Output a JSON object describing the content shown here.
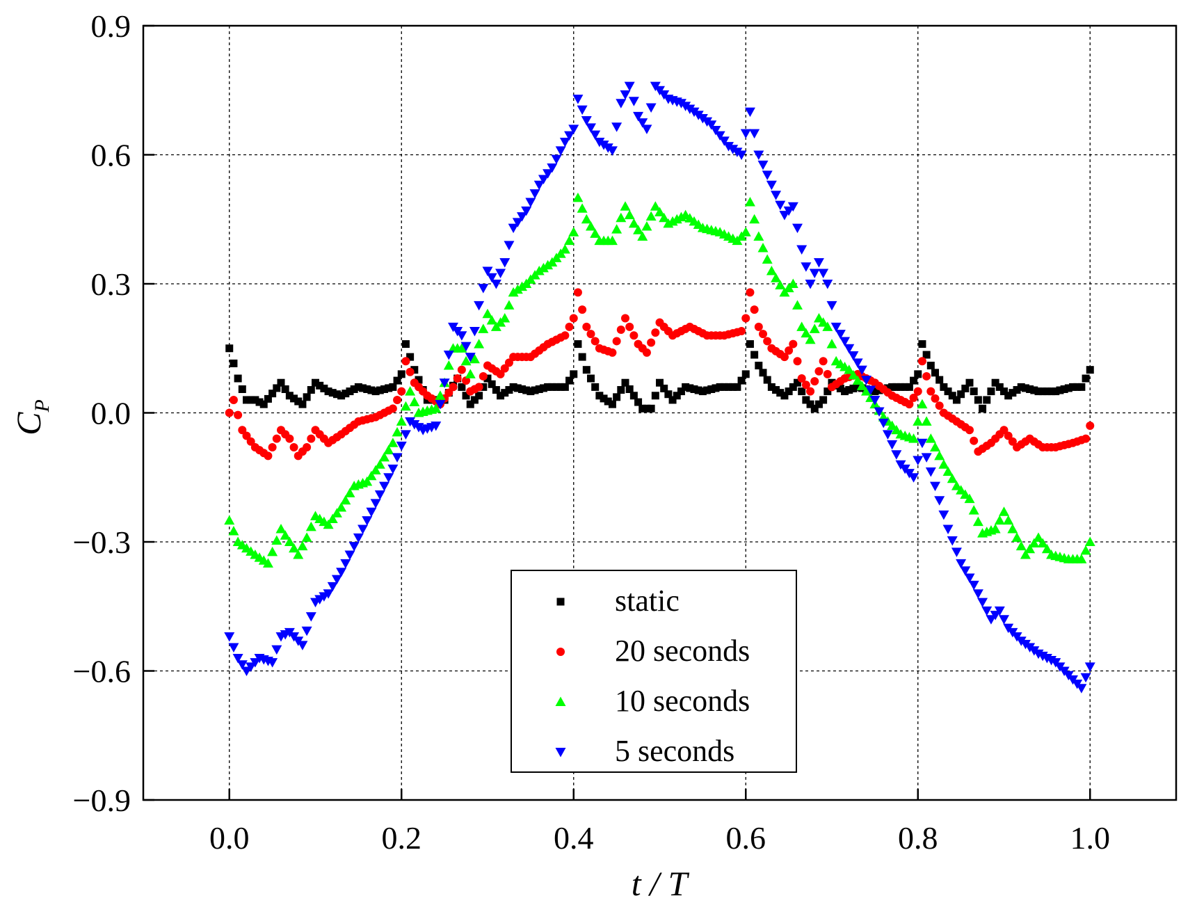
{
  "chart_data": {
    "type": "scatter",
    "title": "",
    "xlabel": "t / T",
    "ylabel_main": "C",
    "ylabel_sub": "P",
    "xlim": [
      -0.1,
      1.1
    ],
    "ylim": [
      -0.9,
      0.9
    ],
    "xticks": [
      0.0,
      0.2,
      0.4,
      0.6,
      0.8,
      1.0
    ],
    "xtick_labels": [
      "0.0",
      "0.2",
      "0.4",
      "0.6",
      "0.8",
      "1.0"
    ],
    "yticks": [
      0.9,
      0.6,
      0.3,
      0.0,
      -0.3,
      -0.6,
      -0.9
    ],
    "ytick_labels": [
      "0.9",
      "0.6",
      "0.3",
      "0.0",
      "−0.3",
      "−0.6",
      "−0.9"
    ],
    "grid": true,
    "legend_position": "bottom-center",
    "x_start": 0.0,
    "x_end": 1.0,
    "n_points": 201,
    "series": [
      {
        "name": "static",
        "marker": "square",
        "color": "#000000",
        "anchors": [
          [
            0.0,
            0.15
          ],
          [
            0.01,
            0.08
          ],
          [
            0.02,
            0.03
          ],
          [
            0.03,
            0.03
          ],
          [
            0.04,
            0.02
          ],
          [
            0.06,
            0.07
          ],
          [
            0.07,
            0.04
          ],
          [
            0.085,
            0.02
          ],
          [
            0.1,
            0.07
          ],
          [
            0.115,
            0.05
          ],
          [
            0.13,
            0.04
          ],
          [
            0.15,
            0.06
          ],
          [
            0.17,
            0.05
          ],
          [
            0.19,
            0.06
          ],
          [
            0.2,
            0.09
          ],
          [
            0.205,
            0.16
          ],
          [
            0.215,
            0.1
          ],
          [
            0.23,
            0.03
          ],
          [
            0.25,
            0.03
          ],
          [
            0.265,
            0.08
          ],
          [
            0.28,
            0.02
          ],
          [
            0.29,
            0.04
          ],
          [
            0.3,
            0.08
          ],
          [
            0.315,
            0.04
          ],
          [
            0.33,
            0.06
          ],
          [
            0.35,
            0.05
          ],
          [
            0.37,
            0.06
          ],
          [
            0.39,
            0.06
          ],
          [
            0.4,
            0.09
          ],
          [
            0.405,
            0.16
          ],
          [
            0.415,
            0.1
          ],
          [
            0.43,
            0.04
          ],
          [
            0.445,
            0.02
          ],
          [
            0.46,
            0.07
          ],
          [
            0.47,
            0.04
          ],
          [
            0.48,
            0.01
          ],
          [
            0.49,
            0.01
          ],
          [
            0.5,
            0.07
          ],
          [
            0.515,
            0.03
          ],
          [
            0.53,
            0.06
          ],
          [
            0.55,
            0.05
          ],
          [
            0.57,
            0.06
          ],
          [
            0.59,
            0.06
          ],
          [
            0.6,
            0.09
          ],
          [
            0.605,
            0.16
          ],
          [
            0.615,
            0.11
          ],
          [
            0.63,
            0.06
          ],
          [
            0.645,
            0.04
          ],
          [
            0.66,
            0.07
          ],
          [
            0.67,
            0.03
          ],
          [
            0.68,
            0.01
          ],
          [
            0.69,
            0.03
          ],
          [
            0.7,
            0.07
          ],
          [
            0.715,
            0.05
          ],
          [
            0.73,
            0.06
          ],
          [
            0.75,
            0.05
          ],
          [
            0.77,
            0.06
          ],
          [
            0.79,
            0.06
          ],
          [
            0.8,
            0.09
          ],
          [
            0.805,
            0.16
          ],
          [
            0.815,
            0.11
          ],
          [
            0.83,
            0.06
          ],
          [
            0.845,
            0.03
          ],
          [
            0.86,
            0.07
          ],
          [
            0.875,
            0.01
          ],
          [
            0.89,
            0.07
          ],
          [
            0.905,
            0.04
          ],
          [
            0.92,
            0.06
          ],
          [
            0.94,
            0.05
          ],
          [
            0.96,
            0.05
          ],
          [
            0.98,
            0.06
          ],
          [
            0.99,
            0.06
          ],
          [
            1.0,
            0.1
          ]
        ]
      },
      {
        "name": "20 seconds",
        "marker": "circle",
        "color": "#ff0000",
        "anchors": [
          [
            0.0,
            0.0
          ],
          [
            0.005,
            0.03
          ],
          [
            0.015,
            -0.04
          ],
          [
            0.03,
            -0.08
          ],
          [
            0.045,
            -0.1
          ],
          [
            0.06,
            -0.04
          ],
          [
            0.07,
            -0.06
          ],
          [
            0.08,
            -0.1
          ],
          [
            0.09,
            -0.08
          ],
          [
            0.1,
            -0.04
          ],
          [
            0.115,
            -0.07
          ],
          [
            0.13,
            -0.05
          ],
          [
            0.15,
            -0.02
          ],
          [
            0.17,
            -0.01
          ],
          [
            0.19,
            0.01
          ],
          [
            0.2,
            0.05
          ],
          [
            0.205,
            0.12
          ],
          [
            0.215,
            0.07
          ],
          [
            0.23,
            0.04
          ],
          [
            0.245,
            0.02
          ],
          [
            0.26,
            0.06
          ],
          [
            0.27,
            0.1
          ],
          [
            0.28,
            0.05
          ],
          [
            0.29,
            0.06
          ],
          [
            0.3,
            0.11
          ],
          [
            0.315,
            0.09
          ],
          [
            0.33,
            0.13
          ],
          [
            0.35,
            0.13
          ],
          [
            0.37,
            0.16
          ],
          [
            0.39,
            0.18
          ],
          [
            0.4,
            0.22
          ],
          [
            0.405,
            0.28
          ],
          [
            0.415,
            0.2
          ],
          [
            0.43,
            0.15
          ],
          [
            0.445,
            0.14
          ],
          [
            0.46,
            0.22
          ],
          [
            0.475,
            0.16
          ],
          [
            0.485,
            0.14
          ],
          [
            0.5,
            0.21
          ],
          [
            0.515,
            0.18
          ],
          [
            0.535,
            0.2
          ],
          [
            0.555,
            0.18
          ],
          [
            0.575,
            0.18
          ],
          [
            0.595,
            0.19
          ],
          [
            0.6,
            0.22
          ],
          [
            0.605,
            0.28
          ],
          [
            0.615,
            0.2
          ],
          [
            0.63,
            0.15
          ],
          [
            0.645,
            0.13
          ],
          [
            0.655,
            0.16
          ],
          [
            0.665,
            0.08
          ],
          [
            0.675,
            0.05
          ],
          [
            0.69,
            0.12
          ],
          [
            0.7,
            0.06
          ],
          [
            0.715,
            0.08
          ],
          [
            0.73,
            0.09
          ],
          [
            0.75,
            0.07
          ],
          [
            0.77,
            0.04
          ],
          [
            0.79,
            0.02
          ],
          [
            0.8,
            0.05
          ],
          [
            0.805,
            0.12
          ],
          [
            0.815,
            0.05
          ],
          [
            0.83,
            0.0
          ],
          [
            0.845,
            -0.02
          ],
          [
            0.86,
            -0.04
          ],
          [
            0.87,
            -0.09
          ],
          [
            0.885,
            -0.07
          ],
          [
            0.9,
            -0.04
          ],
          [
            0.915,
            -0.08
          ],
          [
            0.93,
            -0.06
          ],
          [
            0.945,
            -0.08
          ],
          [
            0.96,
            -0.08
          ],
          [
            0.98,
            -0.07
          ],
          [
            0.995,
            -0.06
          ],
          [
            1.0,
            -0.03
          ]
        ]
      },
      {
        "name": "10 seconds",
        "marker": "triangle-up",
        "color": "#00ff00",
        "anchors": [
          [
            0.0,
            -0.25
          ],
          [
            0.01,
            -0.3
          ],
          [
            0.03,
            -0.33
          ],
          [
            0.045,
            -0.35
          ],
          [
            0.06,
            -0.27
          ],
          [
            0.07,
            -0.3
          ],
          [
            0.08,
            -0.33
          ],
          [
            0.09,
            -0.29
          ],
          [
            0.1,
            -0.24
          ],
          [
            0.115,
            -0.26
          ],
          [
            0.13,
            -0.22
          ],
          [
            0.145,
            -0.17
          ],
          [
            0.16,
            -0.16
          ],
          [
            0.175,
            -0.12
          ],
          [
            0.19,
            -0.07
          ],
          [
            0.2,
            -0.02
          ],
          [
            0.21,
            0.05
          ],
          [
            0.22,
            0.0
          ],
          [
            0.24,
            0.01
          ],
          [
            0.25,
            0.07
          ],
          [
            0.26,
            0.15
          ],
          [
            0.27,
            0.15
          ],
          [
            0.28,
            0.09
          ],
          [
            0.29,
            0.16
          ],
          [
            0.3,
            0.23
          ],
          [
            0.31,
            0.2
          ],
          [
            0.32,
            0.22
          ],
          [
            0.33,
            0.28
          ],
          [
            0.345,
            0.3
          ],
          [
            0.36,
            0.33
          ],
          [
            0.375,
            0.35
          ],
          [
            0.39,
            0.38
          ],
          [
            0.4,
            0.42
          ],
          [
            0.405,
            0.5
          ],
          [
            0.415,
            0.45
          ],
          [
            0.43,
            0.4
          ],
          [
            0.445,
            0.4
          ],
          [
            0.46,
            0.48
          ],
          [
            0.47,
            0.44
          ],
          [
            0.48,
            0.41
          ],
          [
            0.495,
            0.48
          ],
          [
            0.51,
            0.44
          ],
          [
            0.53,
            0.46
          ],
          [
            0.55,
            0.43
          ],
          [
            0.57,
            0.42
          ],
          [
            0.59,
            0.4
          ],
          [
            0.6,
            0.42
          ],
          [
            0.605,
            0.49
          ],
          [
            0.615,
            0.41
          ],
          [
            0.63,
            0.33
          ],
          [
            0.645,
            0.28
          ],
          [
            0.655,
            0.3
          ],
          [
            0.665,
            0.2
          ],
          [
            0.675,
            0.17
          ],
          [
            0.685,
            0.22
          ],
          [
            0.695,
            0.2
          ],
          [
            0.705,
            0.12
          ],
          [
            0.72,
            0.1
          ],
          [
            0.74,
            0.05
          ],
          [
            0.76,
            -0.01
          ],
          [
            0.78,
            -0.05
          ],
          [
            0.795,
            -0.06
          ],
          [
            0.805,
            0.02
          ],
          [
            0.815,
            -0.06
          ],
          [
            0.83,
            -0.12
          ],
          [
            0.845,
            -0.17
          ],
          [
            0.86,
            -0.2
          ],
          [
            0.875,
            -0.28
          ],
          [
            0.89,
            -0.27
          ],
          [
            0.9,
            -0.23
          ],
          [
            0.91,
            -0.27
          ],
          [
            0.925,
            -0.33
          ],
          [
            0.94,
            -0.29
          ],
          [
            0.955,
            -0.33
          ],
          [
            0.975,
            -0.34
          ],
          [
            0.99,
            -0.34
          ],
          [
            1.0,
            -0.3
          ]
        ]
      },
      {
        "name": "5 seconds",
        "marker": "triangle-down",
        "color": "#0000ff",
        "anchors": [
          [
            0.0,
            -0.52
          ],
          [
            0.01,
            -0.57
          ],
          [
            0.02,
            -0.6
          ],
          [
            0.035,
            -0.57
          ],
          [
            0.05,
            -0.58
          ],
          [
            0.06,
            -0.52
          ],
          [
            0.07,
            -0.51
          ],
          [
            0.085,
            -0.54
          ],
          [
            0.1,
            -0.44
          ],
          [
            0.115,
            -0.42
          ],
          [
            0.13,
            -0.37
          ],
          [
            0.15,
            -0.29
          ],
          [
            0.17,
            -0.21
          ],
          [
            0.19,
            -0.13
          ],
          [
            0.205,
            -0.05
          ],
          [
            0.21,
            -0.02
          ],
          [
            0.225,
            -0.04
          ],
          [
            0.24,
            -0.03
          ],
          [
            0.25,
            0.07
          ],
          [
            0.26,
            0.2
          ],
          [
            0.27,
            0.18
          ],
          [
            0.28,
            0.13
          ],
          [
            0.29,
            0.25
          ],
          [
            0.3,
            0.33
          ],
          [
            0.31,
            0.3
          ],
          [
            0.32,
            0.35
          ],
          [
            0.33,
            0.43
          ],
          [
            0.345,
            0.47
          ],
          [
            0.36,
            0.53
          ],
          [
            0.375,
            0.57
          ],
          [
            0.39,
            0.63
          ],
          [
            0.4,
            0.66
          ],
          [
            0.405,
            0.73
          ],
          [
            0.415,
            0.68
          ],
          [
            0.43,
            0.63
          ],
          [
            0.445,
            0.61
          ],
          [
            0.455,
            0.72
          ],
          [
            0.465,
            0.76
          ],
          [
            0.475,
            0.69
          ],
          [
            0.485,
            0.66
          ],
          [
            0.495,
            0.76
          ],
          [
            0.51,
            0.73
          ],
          [
            0.525,
            0.72
          ],
          [
            0.54,
            0.7
          ],
          [
            0.56,
            0.67
          ],
          [
            0.58,
            0.62
          ],
          [
            0.595,
            0.6
          ],
          [
            0.605,
            0.7
          ],
          [
            0.615,
            0.6
          ],
          [
            0.63,
            0.53
          ],
          [
            0.645,
            0.46
          ],
          [
            0.655,
            0.48
          ],
          [
            0.665,
            0.38
          ],
          [
            0.675,
            0.3
          ],
          [
            0.685,
            0.35
          ],
          [
            0.695,
            0.3
          ],
          [
            0.705,
            0.2
          ],
          [
            0.72,
            0.15
          ],
          [
            0.735,
            0.1
          ],
          [
            0.75,
            0.03
          ],
          [
            0.765,
            -0.05
          ],
          [
            0.78,
            -0.12
          ],
          [
            0.795,
            -0.15
          ],
          [
            0.805,
            -0.07
          ],
          [
            0.82,
            -0.17
          ],
          [
            0.835,
            -0.27
          ],
          [
            0.85,
            -0.35
          ],
          [
            0.865,
            -0.4
          ],
          [
            0.875,
            -0.44
          ],
          [
            0.885,
            -0.48
          ],
          [
            0.895,
            -0.46
          ],
          [
            0.905,
            -0.5
          ],
          [
            0.92,
            -0.53
          ],
          [
            0.94,
            -0.56
          ],
          [
            0.96,
            -0.58
          ],
          [
            0.975,
            -0.61
          ],
          [
            0.99,
            -0.64
          ],
          [
            1.0,
            -0.59
          ]
        ]
      }
    ]
  }
}
